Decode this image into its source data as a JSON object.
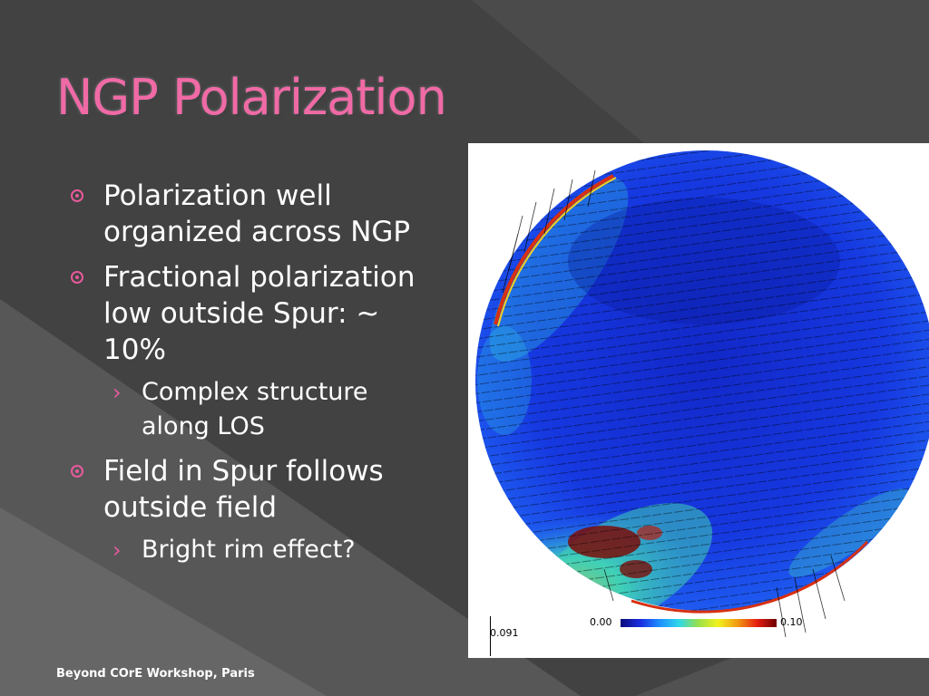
{
  "slide": {
    "title": "NGP Polarization",
    "footer": "Beyond COrE Workshop, Paris",
    "accent_color": "#e85a9c",
    "title_color": "#f06aa6",
    "bullets": [
      {
        "text": "Polarization well organized across NGP"
      },
      {
        "text": "Fractional polarization low outside Spur: ~ 10%"
      },
      {
        "text": "Complex structure along LOS"
      },
      {
        "text": "Field in Spur follows outside field"
      },
      {
        "text": "Bright rim effect?"
      }
    ]
  },
  "figure": {
    "colorbar_min": "0.00",
    "colorbar_max": "0.10",
    "scale_label": "0.091"
  }
}
